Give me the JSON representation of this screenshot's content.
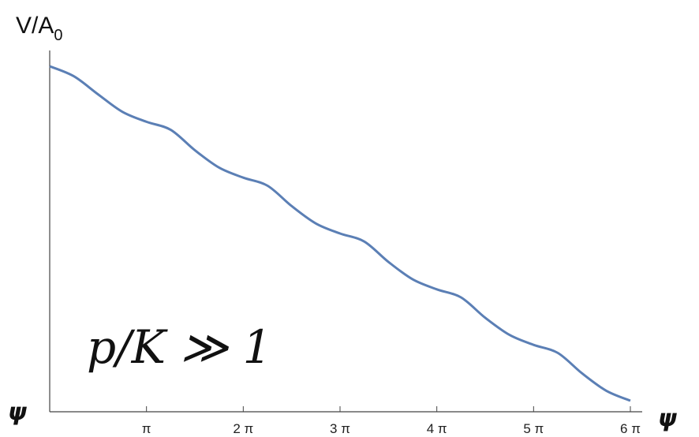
{
  "chart_data": {
    "type": "line",
    "ylabel": "V/A",
    "ylabel_subscript": "0",
    "xlabel": "ψ",
    "xlabel_left": "ψ",
    "annotation": "p/K ≫ 1",
    "x_ticks": [
      "π",
      "2 π",
      "3 π",
      "4 π",
      "5 π",
      "6 π"
    ],
    "xlim": [
      0,
      6
    ],
    "ylim": [
      0,
      1
    ],
    "grid": false,
    "series": [
      {
        "color": "#5b7fb5",
        "x": [
          0,
          0.25,
          0.5,
          0.75,
          1.0,
          1.25,
          1.5,
          1.75,
          2.0,
          2.25,
          2.5,
          2.75,
          3.0,
          3.25,
          3.5,
          3.75,
          4.0,
          4.25,
          4.5,
          4.75,
          5.0,
          5.25,
          5.5,
          5.75,
          6.0
        ],
        "y": [
          1.0,
          0.97,
          0.916,
          0.864,
          0.834,
          0.81,
          0.749,
          0.697,
          0.667,
          0.643,
          0.582,
          0.53,
          0.5,
          0.476,
          0.415,
          0.363,
          0.333,
          0.309,
          0.248,
          0.197,
          0.167,
          0.143,
          0.082,
          0.03,
          0.0
        ]
      }
    ]
  }
}
